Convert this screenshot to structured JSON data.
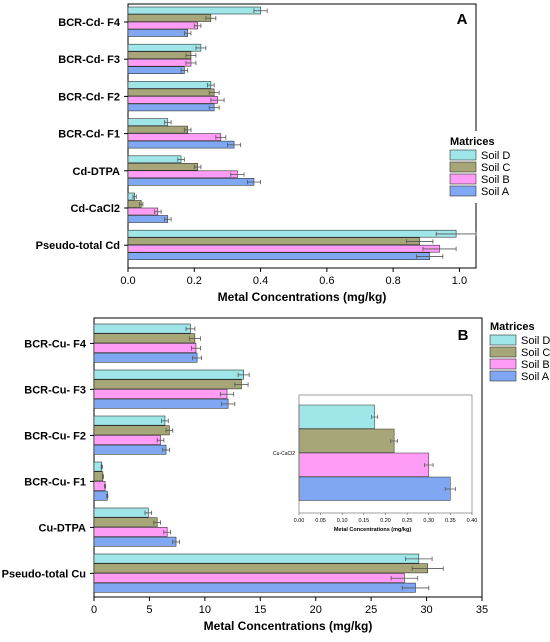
{
  "colors": {
    "soil_d": "#9fe6e8",
    "soil_c": "#a6a679",
    "soil_b": "#ff9cf5",
    "soil_a": "#7fa7f2",
    "axis": "#000000"
  },
  "chart_data": [
    {
      "type": "bar",
      "orientation": "horizontal",
      "panel_label": "A",
      "xlabel": "Metal Concentrations (mg/kg)",
      "xlim": [
        0,
        1.05
      ],
      "xticks": [
        "0.0",
        "0.2",
        "0.4",
        "0.6",
        "0.8",
        "1.0"
      ],
      "categories": [
        "BCR-Cd- F4",
        "BCR-Cd- F3",
        "BCR-Cd- F2",
        "BCR-Cd- F1",
        "Cd-DTPA",
        "Cd-CaCl2",
        "Pseudo-total Cd"
      ],
      "legend": {
        "title": "Matrices",
        "placement": "right-center",
        "entries": [
          "Soil D",
          "Soil C",
          "Soil B",
          "Soil A"
        ]
      },
      "series": [
        {
          "name": "Soil D",
          "values": [
            0.4,
            0.22,
            0.25,
            0.12,
            0.16,
            0.02,
            0.99
          ],
          "errors": [
            0.02,
            0.015,
            0.01,
            0.01,
            0.01,
            0.005,
            0.06
          ]
        },
        {
          "name": "Soil C",
          "values": [
            0.25,
            0.19,
            0.26,
            0.18,
            0.21,
            0.04,
            0.88
          ],
          "errors": [
            0.015,
            0.015,
            0.015,
            0.01,
            0.01,
            0.005,
            0.04
          ]
        },
        {
          "name": "Soil B",
          "values": [
            0.21,
            0.19,
            0.27,
            0.28,
            0.33,
            0.09,
            0.94
          ],
          "errors": [
            0.01,
            0.015,
            0.02,
            0.015,
            0.02,
            0.01,
            0.05
          ]
        },
        {
          "name": "Soil A",
          "values": [
            0.18,
            0.17,
            0.26,
            0.32,
            0.38,
            0.12,
            0.91
          ],
          "errors": [
            0.01,
            0.01,
            0.015,
            0.02,
            0.02,
            0.01,
            0.04
          ]
        }
      ]
    },
    {
      "type": "bar",
      "orientation": "horizontal",
      "panel_label": "B",
      "xlabel": "Metal Concentrations (mg/kg)",
      "xlim": [
        0,
        35
      ],
      "xticks": [
        "0",
        "5",
        "10",
        "15",
        "20",
        "25",
        "30",
        "35"
      ],
      "categories": [
        "BCR-Cu- F4",
        "BCR-Cu- F3",
        "BCR-Cu- F2",
        "BCR-Cu- F1",
        "Cu-DTPA",
        "Pseudo-total Cu"
      ],
      "legend": {
        "title": "Matrices",
        "placement": "outside-right-top",
        "entries": [
          "Soil D",
          "Soil C",
          "Soil B",
          "Soil A"
        ]
      },
      "series": [
        {
          "name": "Soil D",
          "values": [
            8.7,
            13.5,
            6.4,
            0.7,
            4.9,
            29.3
          ],
          "errors": [
            0.4,
            0.5,
            0.3,
            0.05,
            0.3,
            1.2
          ]
        },
        {
          "name": "Soil C",
          "values": [
            9.1,
            13.3,
            6.8,
            0.8,
            5.7,
            30.1
          ],
          "errors": [
            0.5,
            0.6,
            0.3,
            0.05,
            0.3,
            1.4
          ]
        },
        {
          "name": "Soil B",
          "values": [
            9.2,
            12.0,
            6.0,
            1.0,
            6.6,
            28.0
          ],
          "errors": [
            0.4,
            0.6,
            0.3,
            0.05,
            0.3,
            1.2
          ]
        },
        {
          "name": "Soil A",
          "values": [
            9.3,
            12.1,
            6.5,
            1.2,
            7.4,
            29.0
          ],
          "errors": [
            0.4,
            0.6,
            0.3,
            0.05,
            0.3,
            1.2
          ]
        }
      ],
      "inset": {
        "type": "bar",
        "orientation": "horizontal",
        "xlabel": "Metal Concentrations (mg/kg)",
        "xlim": [
          0,
          0.4
        ],
        "xticks": [
          "0.00",
          "0.05",
          "0.10",
          "0.15",
          "0.20",
          "0.25",
          "0.30",
          "0.35",
          "0.40"
        ],
        "categories": [
          "Cu-CaCl2"
        ],
        "series": [
          {
            "name": "Soil D",
            "values": [
              0.175
            ],
            "errors": [
              0.007
            ]
          },
          {
            "name": "Soil C",
            "values": [
              0.22
            ],
            "errors": [
              0.008
            ]
          },
          {
            "name": "Soil B",
            "values": [
              0.3
            ],
            "errors": [
              0.01
            ]
          },
          {
            "name": "Soil A",
            "values": [
              0.35
            ],
            "errors": [
              0.012
            ]
          }
        ]
      }
    }
  ]
}
